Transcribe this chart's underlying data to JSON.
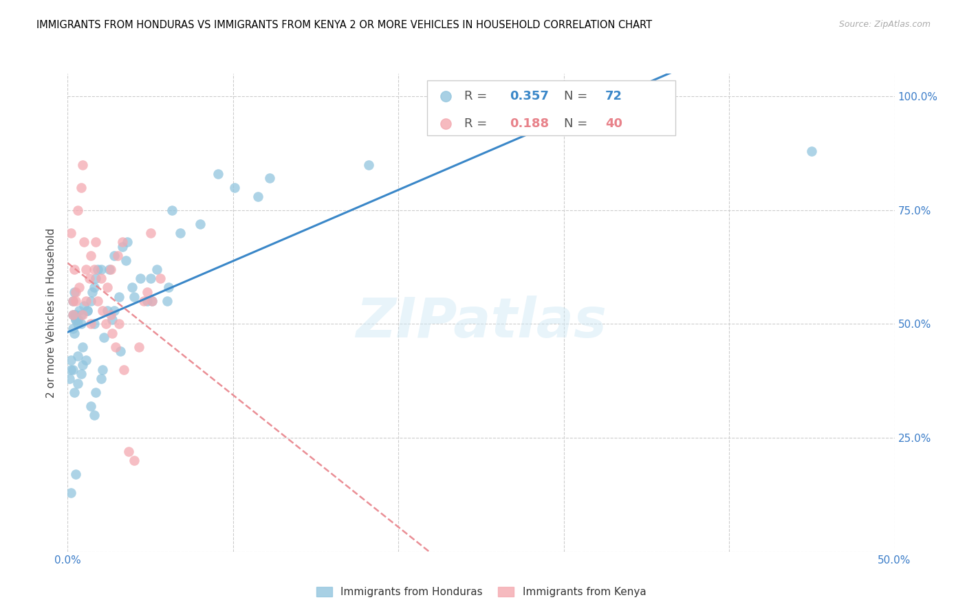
{
  "title": "IMMIGRANTS FROM HONDURAS VS IMMIGRANTS FROM KENYA 2 OR MORE VEHICLES IN HOUSEHOLD CORRELATION CHART",
  "source": "Source: ZipAtlas.com",
  "ylabel": "2 or more Vehicles in Household",
  "x_min": 0.0,
  "x_max": 0.5,
  "y_min": 0.0,
  "y_max": 1.05,
  "x_ticks": [
    0.0,
    0.1,
    0.2,
    0.3,
    0.4,
    0.5
  ],
  "x_tick_labels_show": [
    "0.0%",
    "",
    "",
    "",
    "",
    "50.0%"
  ],
  "y_ticks": [
    0.0,
    0.25,
    0.5,
    0.75,
    1.0
  ],
  "y_tick_labels_right": [
    "",
    "25.0%",
    "50.0%",
    "75.0%",
    "100.0%"
  ],
  "R_honduras": 0.357,
  "N_honduras": 72,
  "R_kenya": 0.188,
  "N_kenya": 40,
  "color_honduras": "#92c5de",
  "color_kenya": "#f4a9b0",
  "color_honduras_line": "#3a87c8",
  "color_kenya_line": "#e8828a",
  "legend_label_honduras": "Immigrants from Honduras",
  "legend_label_kenya": "Immigrants from Kenya",
  "watermark": "ZIPatlas",
  "honduras_x": [
    0.298,
    0.003,
    0.182,
    0.004,
    0.008,
    0.006,
    0.005,
    0.003,
    0.004,
    0.005,
    0.007,
    0.01,
    0.008,
    0.012,
    0.004,
    0.02,
    0.006,
    0.018,
    0.015,
    0.005,
    0.012,
    0.014,
    0.017,
    0.016,
    0.025,
    0.028,
    0.033,
    0.036,
    0.035,
    0.063,
    0.06,
    0.054,
    0.061,
    0.051,
    0.068,
    0.091,
    0.08,
    0.003,
    0.002,
    0.001,
    0.003,
    0.006,
    0.009,
    0.024,
    0.027,
    0.04,
    0.044,
    0.05,
    0.101,
    0.115,
    0.122,
    0.002,
    0.048,
    0.002,
    0.005,
    0.016,
    0.017,
    0.014,
    0.02,
    0.021,
    0.032,
    0.006,
    0.004,
    0.008,
    0.011,
    0.009,
    0.039,
    0.031,
    0.022,
    0.016,
    0.028,
    0.45
  ],
  "honduras_y": [
    1.0,
    0.55,
    0.85,
    0.52,
    0.5,
    0.5,
    0.51,
    0.52,
    0.48,
    0.51,
    0.53,
    0.54,
    0.52,
    0.53,
    0.57,
    0.62,
    0.51,
    0.62,
    0.57,
    0.52,
    0.53,
    0.55,
    0.6,
    0.58,
    0.62,
    0.65,
    0.67,
    0.68,
    0.64,
    0.75,
    0.55,
    0.62,
    0.58,
    0.55,
    0.7,
    0.83,
    0.72,
    0.49,
    0.42,
    0.38,
    0.4,
    0.43,
    0.45,
    0.53,
    0.51,
    0.56,
    0.6,
    0.6,
    0.8,
    0.78,
    0.82,
    0.4,
    0.55,
    0.13,
    0.17,
    0.3,
    0.35,
    0.32,
    0.38,
    0.4,
    0.44,
    0.37,
    0.35,
    0.39,
    0.42,
    0.41,
    0.58,
    0.56,
    0.47,
    0.5,
    0.53,
    0.88
  ],
  "kenya_x": [
    0.002,
    0.004,
    0.005,
    0.006,
    0.007,
    0.003,
    0.003,
    0.005,
    0.009,
    0.008,
    0.01,
    0.011,
    0.013,
    0.014,
    0.016,
    0.017,
    0.018,
    0.02,
    0.021,
    0.023,
    0.026,
    0.027,
    0.029,
    0.031,
    0.034,
    0.037,
    0.04,
    0.043,
    0.046,
    0.048,
    0.051,
    0.056,
    0.014,
    0.009,
    0.011,
    0.024,
    0.026,
    0.03,
    0.033,
    0.05
  ],
  "kenya_y": [
    0.7,
    0.62,
    0.57,
    0.75,
    0.58,
    0.55,
    0.52,
    0.55,
    0.85,
    0.8,
    0.68,
    0.62,
    0.6,
    0.65,
    0.62,
    0.68,
    0.55,
    0.6,
    0.53,
    0.5,
    0.52,
    0.48,
    0.45,
    0.5,
    0.4,
    0.22,
    0.2,
    0.45,
    0.55,
    0.57,
    0.55,
    0.6,
    0.5,
    0.52,
    0.55,
    0.58,
    0.62,
    0.65,
    0.68,
    0.7
  ]
}
